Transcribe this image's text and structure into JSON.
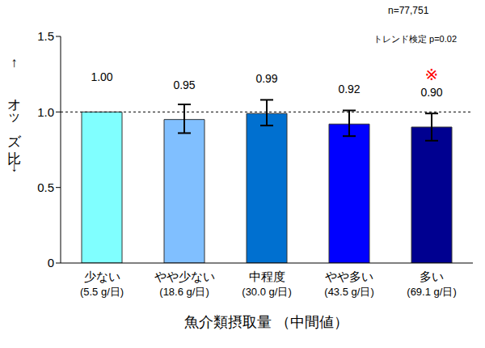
{
  "chart_data": {
    "type": "bar",
    "x_label": "魚介類摂取量 （中間値）",
    "y_label": "↑ オッズ比 ↓",
    "annotations": [
      "n=77,751",
      "トレンド検定 p=0.02"
    ],
    "categories": [
      "少ない\n(5.5 g/日)",
      "やや少ない\n(18.6 g/日)",
      "中程度\n(30.0 g/日)",
      "やや多い\n(43.5 g/日)",
      "多い\n(69.1 g/日)"
    ],
    "values": [
      1.0,
      0.95,
      0.99,
      0.92,
      0.9
    ],
    "value_labels": [
      "1.00",
      "0.95",
      "0.99",
      "0.92",
      "0.90"
    ],
    "error_bars": [
      null,
      [
        0.86,
        1.05
      ],
      [
        0.91,
        1.08
      ],
      [
        0.84,
        1.01
      ],
      [
        0.81,
        0.99
      ]
    ],
    "significance_marks": [
      null,
      null,
      null,
      null,
      "※"
    ],
    "colors": [
      "#80ffff",
      "#80bfff",
      "#0070d0",
      "#0000ff",
      "#000090"
    ],
    "reference_line": 1,
    "ylim": [
      0,
      1.5
    ],
    "yticks": [
      0,
      0.5,
      {
        "value": 1,
        "label": "1.0"
      },
      1.5
    ],
    "grid": false,
    "data_labels": true
  }
}
